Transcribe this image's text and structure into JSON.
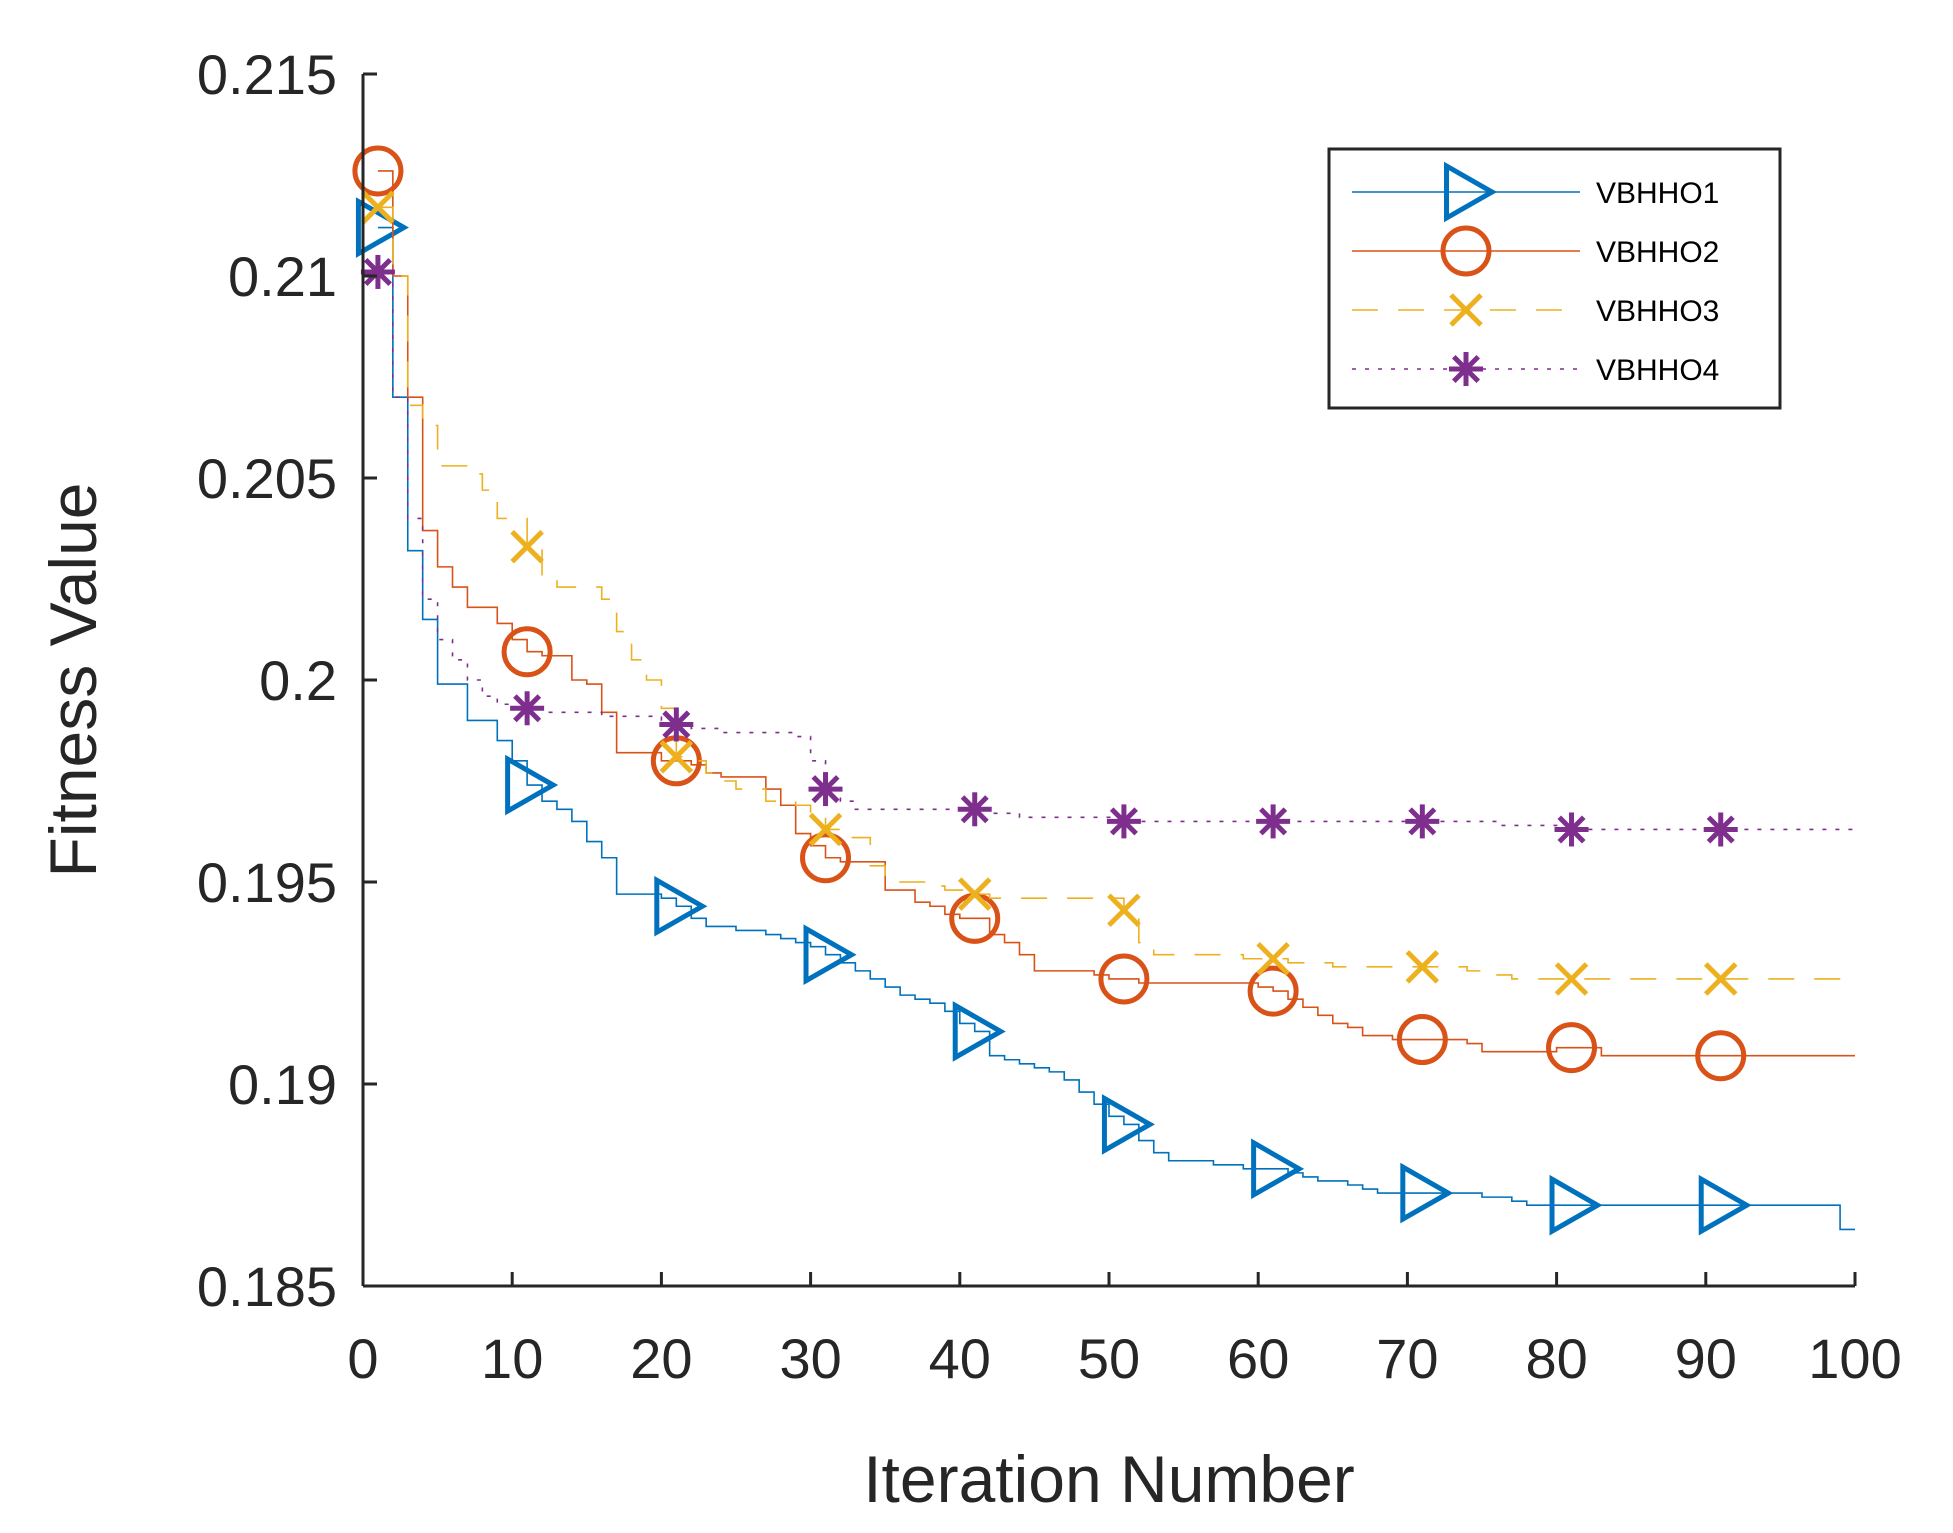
{
  "chart_data": {
    "type": "line",
    "title": "",
    "xlabel": "Iteration Number",
    "ylabel": "Fitness Value",
    "xlim": [
      0,
      100
    ],
    "ylim": [
      0.185,
      0.215
    ],
    "xticks": [
      0,
      10,
      20,
      30,
      40,
      50,
      60,
      70,
      80,
      90,
      100
    ],
    "xtick_labels": [
      "0",
      "10",
      "20",
      "30",
      "40",
      "50",
      "60",
      "70",
      "80",
      "90",
      "100"
    ],
    "yticks": [
      0.185,
      0.19,
      0.195,
      0.2,
      0.205,
      0.21,
      0.215
    ],
    "ytick_labels": [
      "0.185",
      "0.19",
      "0.195",
      "0.2",
      "0.205",
      "0.21",
      "0.215"
    ],
    "grid": false,
    "legend_position": "top-right",
    "series": [
      {
        "name": "VBHHO1",
        "color": "#0072BD",
        "line_style": "solid",
        "marker": "triangle-right",
        "x": [
          1,
          2,
          3,
          4,
          5,
          6,
          7,
          8,
          9,
          10,
          11,
          12,
          13,
          14,
          15,
          16,
          17,
          18,
          19,
          20,
          21,
          22,
          23,
          24,
          25,
          26,
          27,
          28,
          29,
          30,
          31,
          32,
          33,
          34,
          35,
          36,
          37,
          38,
          39,
          40,
          41,
          42,
          43,
          44,
          45,
          46,
          47,
          48,
          49,
          50,
          51,
          52,
          53,
          54,
          55,
          56,
          57,
          58,
          59,
          60,
          61,
          62,
          63,
          64,
          65,
          66,
          67,
          68,
          69,
          70,
          71,
          72,
          73,
          74,
          75,
          76,
          77,
          78,
          79,
          80,
          81,
          82,
          83,
          84,
          85,
          86,
          87,
          88,
          89,
          90,
          91,
          92,
          93,
          94,
          95,
          96,
          97,
          98,
          99,
          100
        ],
        "values": [
          0.2112,
          0.207,
          0.2032,
          0.2015,
          0.1999,
          0.1999,
          0.199,
          0.199,
          0.1985,
          0.198,
          0.1974,
          0.197,
          0.1968,
          0.1965,
          0.196,
          0.1956,
          0.1947,
          0.1947,
          0.1947,
          0.1946,
          0.1944,
          0.1941,
          0.1939,
          0.1939,
          0.1938,
          0.1938,
          0.1937,
          0.1936,
          0.1935,
          0.1934,
          0.1932,
          0.193,
          0.1928,
          0.1926,
          0.1924,
          0.1922,
          0.1921,
          0.192,
          0.1918,
          0.1915,
          0.1913,
          0.1907,
          0.1906,
          0.1905,
          0.1904,
          0.1903,
          0.1901,
          0.1898,
          0.1895,
          0.1892,
          0.189,
          0.1886,
          0.1883,
          0.1881,
          0.1881,
          0.1881,
          0.188,
          0.188,
          0.1879,
          0.1879,
          0.1879,
          0.1878,
          0.1877,
          0.1876,
          0.1876,
          0.1875,
          0.1874,
          0.1873,
          0.1873,
          0.1873,
          0.1873,
          0.1873,
          0.1873,
          0.1873,
          0.1872,
          0.1872,
          0.1871,
          0.187,
          0.187,
          0.187,
          0.187,
          0.187,
          0.187,
          0.187,
          0.187,
          0.187,
          0.187,
          0.187,
          0.187,
          0.187,
          0.187,
          0.187,
          0.187,
          0.187,
          0.187,
          0.187,
          0.187,
          0.187,
          0.1864,
          0.1864
        ],
        "marker_x": [
          1,
          11,
          21,
          31,
          41,
          51,
          61,
          71,
          81,
          91
        ]
      },
      {
        "name": "VBHHO2",
        "color": "#D95319",
        "line_style": "solid",
        "marker": "circle",
        "x": [
          1,
          2,
          3,
          4,
          5,
          6,
          7,
          8,
          9,
          10,
          11,
          12,
          13,
          14,
          15,
          16,
          17,
          18,
          19,
          20,
          21,
          22,
          23,
          24,
          25,
          26,
          27,
          28,
          29,
          30,
          31,
          32,
          33,
          34,
          35,
          36,
          37,
          38,
          39,
          40,
          41,
          42,
          43,
          44,
          45,
          46,
          47,
          48,
          49,
          50,
          51,
          52,
          53,
          54,
          55,
          56,
          57,
          58,
          59,
          60,
          61,
          62,
          63,
          64,
          65,
          66,
          67,
          68,
          69,
          70,
          71,
          72,
          73,
          74,
          75,
          76,
          77,
          78,
          79,
          80,
          81,
          82,
          83,
          84,
          85,
          86,
          87,
          88,
          89,
          90,
          91,
          92,
          93,
          94,
          95,
          96,
          97,
          98,
          99,
          100
        ],
        "values": [
          0.2126,
          0.21,
          0.207,
          0.2037,
          0.2028,
          0.2023,
          0.2018,
          0.2018,
          0.2014,
          0.201,
          0.2007,
          0.2006,
          0.2006,
          0.2,
          0.1999,
          0.1992,
          0.1982,
          0.1982,
          0.1982,
          0.198,
          0.198,
          0.1979,
          0.1977,
          0.1976,
          0.1976,
          0.1976,
          0.1973,
          0.1969,
          0.1962,
          0.1959,
          0.1956,
          0.1955,
          0.1955,
          0.1955,
          0.1948,
          0.1948,
          0.1945,
          0.1944,
          0.1942,
          0.1941,
          0.1941,
          0.1937,
          0.1935,
          0.1932,
          0.1928,
          0.1928,
          0.1928,
          0.1928,
          0.1927,
          0.1926,
          0.1926,
          0.1925,
          0.1925,
          0.1925,
          0.1925,
          0.1925,
          0.1925,
          0.1925,
          0.1925,
          0.1924,
          0.1923,
          0.1921,
          0.1919,
          0.1917,
          0.1915,
          0.1914,
          0.1912,
          0.1912,
          0.1911,
          0.1911,
          0.1911,
          0.1911,
          0.1911,
          0.191,
          0.1908,
          0.1908,
          0.1908,
          0.1908,
          0.1908,
          0.1909,
          0.1909,
          0.1909,
          0.1907,
          0.1907,
          0.1907,
          0.1907,
          0.1907,
          0.1907,
          0.1907,
          0.1907,
          0.1907,
          0.1907,
          0.1907,
          0.1907,
          0.1907,
          0.1907,
          0.1907,
          0.1907,
          0.1907,
          0.1907
        ],
        "marker_x": [
          1,
          11,
          21,
          31,
          41,
          51,
          61,
          71,
          81,
          91
        ]
      },
      {
        "name": "VBHHO3",
        "color": "#EDB120",
        "line_style": "dashed",
        "marker": "x",
        "x": [
          1,
          2,
          3,
          4,
          5,
          6,
          7,
          8,
          9,
          10,
          11,
          12,
          13,
          14,
          15,
          16,
          17,
          18,
          19,
          20,
          21,
          22,
          23,
          24,
          25,
          26,
          27,
          28,
          29,
          30,
          31,
          32,
          33,
          34,
          35,
          36,
          37,
          38,
          39,
          40,
          41,
          42,
          43,
          44,
          45,
          46,
          47,
          48,
          49,
          50,
          51,
          52,
          53,
          54,
          55,
          56,
          57,
          58,
          59,
          60,
          61,
          62,
          63,
          64,
          65,
          66,
          67,
          68,
          69,
          70,
          71,
          72,
          73,
          74,
          75,
          76,
          77,
          78,
          79,
          80,
          81,
          82,
          83,
          84,
          85,
          86,
          87,
          88,
          89,
          90,
          91,
          92,
          93,
          94,
          95,
          96,
          97,
          98,
          99,
          100
        ],
        "values": [
          0.2117,
          0.21,
          0.2068,
          0.2063,
          0.2053,
          0.2053,
          0.2051,
          0.2047,
          0.204,
          0.204,
          0.2033,
          0.2026,
          0.2023,
          0.2023,
          0.2023,
          0.202,
          0.2012,
          0.2005,
          0.2,
          0.1993,
          0.1981,
          0.198,
          0.1977,
          0.1975,
          0.1973,
          0.1973,
          0.197,
          0.197,
          0.1969,
          0.1967,
          0.1963,
          0.1961,
          0.1961,
          0.1954,
          0.195,
          0.195,
          0.195,
          0.1949,
          0.1948,
          0.1948,
          0.1947,
          0.1946,
          0.1946,
          0.1946,
          0.1946,
          0.1946,
          0.1946,
          0.1946,
          0.1946,
          0.1946,
          0.1943,
          0.1935,
          0.1932,
          0.1932,
          0.1932,
          0.1932,
          0.1932,
          0.1932,
          0.1931,
          0.1931,
          0.1931,
          0.193,
          0.193,
          0.193,
          0.1929,
          0.1929,
          0.1929,
          0.1929,
          0.1929,
          0.1929,
          0.1929,
          0.1929,
          0.1929,
          0.1928,
          0.1928,
          0.1927,
          0.1926,
          0.1926,
          0.1926,
          0.1926,
          0.1926,
          0.1926,
          0.1926,
          0.1926,
          0.1926,
          0.1926,
          0.1926,
          0.1926,
          0.1926,
          0.1926,
          0.1926,
          0.1926,
          0.1926,
          0.1926,
          0.1926,
          0.1926,
          0.1926,
          0.1926,
          0.1926,
          0.1926
        ],
        "marker_x": [
          1,
          11,
          21,
          31,
          41,
          51,
          61,
          71,
          81,
          91
        ]
      },
      {
        "name": "VBHHO4",
        "color": "#7E2F8E",
        "line_style": "dotted",
        "marker": "asterisk",
        "x": [
          1,
          2,
          3,
          4,
          5,
          6,
          7,
          8,
          9,
          10,
          11,
          12,
          13,
          14,
          15,
          16,
          17,
          18,
          19,
          20,
          21,
          22,
          23,
          24,
          25,
          26,
          27,
          28,
          29,
          30,
          31,
          32,
          33,
          34,
          35,
          36,
          37,
          38,
          39,
          40,
          41,
          42,
          43,
          44,
          45,
          46,
          47,
          48,
          49,
          50,
          51,
          52,
          53,
          54,
          55,
          56,
          57,
          58,
          59,
          60,
          61,
          62,
          63,
          64,
          65,
          66,
          67,
          68,
          69,
          70,
          71,
          72,
          73,
          74,
          75,
          76,
          77,
          78,
          79,
          80,
          81,
          82,
          83,
          84,
          85,
          86,
          87,
          88,
          89,
          90,
          91,
          92,
          93,
          94,
          95,
          96,
          97,
          98,
          99,
          100
        ],
        "values": [
          0.2101,
          0.207,
          0.204,
          0.202,
          0.201,
          0.2005,
          0.2,
          0.1996,
          0.1994,
          0.1993,
          0.1993,
          0.1992,
          0.1992,
          0.1992,
          0.1992,
          0.1991,
          0.1991,
          0.1991,
          0.1991,
          0.199,
          0.1989,
          0.1988,
          0.1988,
          0.1987,
          0.1987,
          0.1987,
          0.1987,
          0.1987,
          0.1986,
          0.198,
          0.1973,
          0.197,
          0.1968,
          0.1968,
          0.1968,
          0.1968,
          0.1968,
          0.1968,
          0.1968,
          0.1968,
          0.1968,
          0.1967,
          0.1967,
          0.1966,
          0.1966,
          0.1966,
          0.1966,
          0.1966,
          0.1966,
          0.1966,
          0.1965,
          0.1965,
          0.1965,
          0.1965,
          0.1965,
          0.1965,
          0.1965,
          0.1965,
          0.1965,
          0.1965,
          0.1965,
          0.1965,
          0.1965,
          0.1965,
          0.1965,
          0.1965,
          0.1965,
          0.1965,
          0.1965,
          0.1965,
          0.1965,
          0.1965,
          0.1965,
          0.1965,
          0.1965,
          0.1964,
          0.1964,
          0.1964,
          0.1964,
          0.1963,
          0.1963,
          0.1963,
          0.1963,
          0.1963,
          0.1963,
          0.1963,
          0.1963,
          0.1963,
          0.1963,
          0.1963,
          0.1963,
          0.1963,
          0.1963,
          0.1963,
          0.1963,
          0.1963,
          0.1963,
          0.1963,
          0.1963,
          0.1963
        ],
        "marker_x": [
          1,
          11,
          21,
          31,
          41,
          51,
          61,
          71,
          81,
          91
        ]
      }
    ]
  }
}
